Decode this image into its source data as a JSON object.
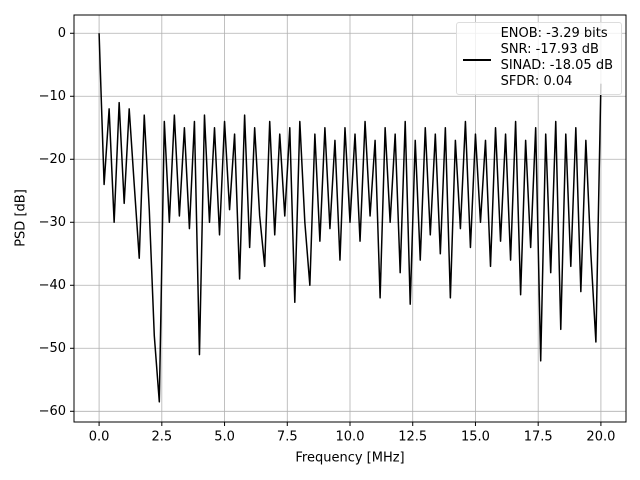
{
  "chart_data": {
    "type": "line",
    "xlabel": "Frequency [MHz]",
    "ylabel": "PSD [dB]",
    "x": [
      0,
      0.2,
      0.4,
      0.6,
      0.8,
      1,
      1.2,
      1.4,
      1.6,
      1.8,
      2,
      2.2,
      2.4,
      2.6,
      2.8,
      3,
      3.2,
      3.4,
      3.6,
      3.8,
      4,
      4.2,
      4.4,
      4.6,
      4.8,
      5,
      5.2,
      5.4,
      5.6,
      5.8,
      6,
      6.2,
      6.4,
      6.6,
      6.8,
      7,
      7.2,
      7.4,
      7.6,
      7.8,
      8,
      8.2,
      8.4,
      8.6,
      8.8,
      9,
      9.2,
      9.4,
      9.6,
      9.8,
      10,
      10.2,
      10.4,
      10.6,
      10.8,
      11,
      11.2,
      11.4,
      11.6,
      11.8,
      12,
      12.2,
      12.4,
      12.6,
      12.8,
      13,
      13.2,
      13.4,
      13.6,
      13.8,
      14,
      14.2,
      14.4,
      14.6,
      14.8,
      15,
      15.2,
      15.4,
      15.6,
      15.8,
      16,
      16.2,
      16.4,
      16.6,
      16.8,
      17,
      17.2,
      17.4,
      17.6,
      17.8,
      18,
      18.2,
      18.4,
      18.6,
      18.8,
      19,
      19.2,
      19.4,
      19.6,
      19.8,
      20
    ],
    "series": [
      {
        "name": "ENOB: -3.29 bits\nSNR: -17.93 dB\nSINAD: -18.05 dB\nSFDR: 0.04",
        "color": "#000000",
        "values": [
          0,
          -24,
          -12,
          -30,
          -11,
          -27,
          -12,
          -24,
          -35.7,
          -13,
          -28,
          -48,
          -58.5,
          -14,
          -30,
          -13,
          -29,
          -15,
          -31,
          -14,
          -51,
          -13,
          -30,
          -15,
          -32,
          -14,
          -28,
          -16,
          -39,
          -13,
          -34,
          -15,
          -29,
          -37,
          -14,
          -32,
          -16,
          -29,
          -15,
          -42.7,
          -14,
          -30,
          -40,
          -16,
          -33,
          -15,
          -31,
          -17,
          -36,
          -15,
          -30,
          -16,
          -33,
          -14,
          -29,
          -17,
          -42,
          -15,
          -30,
          -16,
          -38,
          -14,
          -43,
          -17,
          -36,
          -15,
          -32,
          -16,
          -35,
          -15,
          -42,
          -17,
          -31,
          -14,
          -34,
          -16,
          -30,
          -17,
          -37,
          -15,
          -33,
          -16,
          -36,
          -14,
          -41.5,
          -17,
          -34,
          -15,
          -52,
          -16,
          -38,
          -14,
          -47,
          -16,
          -37,
          -15,
          -41,
          -17,
          -35,
          -49,
          -8
        ]
      }
    ],
    "xlim": [
      -1,
      21
    ],
    "ylim": [
      -61.7,
      2.9
    ],
    "xticks": [
      {
        "value": 0,
        "label": "0.0"
      },
      2.5,
      {
        "value": 5,
        "label": "5.0"
      },
      7.5,
      {
        "value": 10,
        "label": "10.0"
      },
      12.5,
      {
        "value": 15,
        "label": "15.0"
      },
      17.5,
      {
        "value": 20,
        "label": "20.0"
      }
    ],
    "yticks": [
      {
        "value": 0,
        "label": "0"
      },
      {
        "value": -10,
        "label": "−10"
      },
      {
        "value": -20,
        "label": "−20"
      },
      {
        "value": -30,
        "label": "−30"
      },
      {
        "value": -40,
        "label": "−40"
      },
      {
        "value": -50,
        "label": "−50"
      },
      {
        "value": -60,
        "label": "−60"
      }
    ],
    "grid": true,
    "legend": "upper right"
  }
}
